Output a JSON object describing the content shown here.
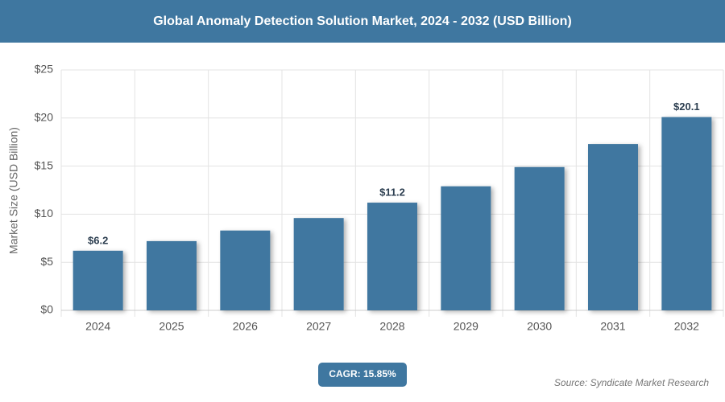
{
  "chart_data": {
    "type": "bar",
    "title": "Global Anomaly Detection Solution Market, 2024 - 2032 (USD Billion)",
    "y_axis_label": "Market Size (USD Billion)",
    "categories": [
      "2024",
      "2025",
      "2026",
      "2027",
      "2028",
      "2029",
      "2030",
      "2031",
      "2032"
    ],
    "values": [
      6.2,
      7.2,
      8.3,
      9.6,
      11.2,
      12.9,
      14.9,
      17.3,
      20.1
    ],
    "value_labels": [
      "$6.2",
      null,
      null,
      null,
      "$11.2",
      null,
      null,
      null,
      "$20.1"
    ],
    "color": "#3f77a0",
    "ylim": [
      0,
      25
    ],
    "yticks": [
      {
        "value": 0,
        "label": "$0"
      },
      {
        "value": 5,
        "label": "$5"
      },
      {
        "value": 10,
        "label": "$10"
      },
      {
        "value": 15,
        "label": "$15"
      },
      {
        "value": 20,
        "label": "$20"
      },
      {
        "value": 25,
        "label": "$25"
      }
    ],
    "grid": true,
    "cagr": "CAGR: 15.85%",
    "source": "Source: Syndicate Market Research"
  }
}
